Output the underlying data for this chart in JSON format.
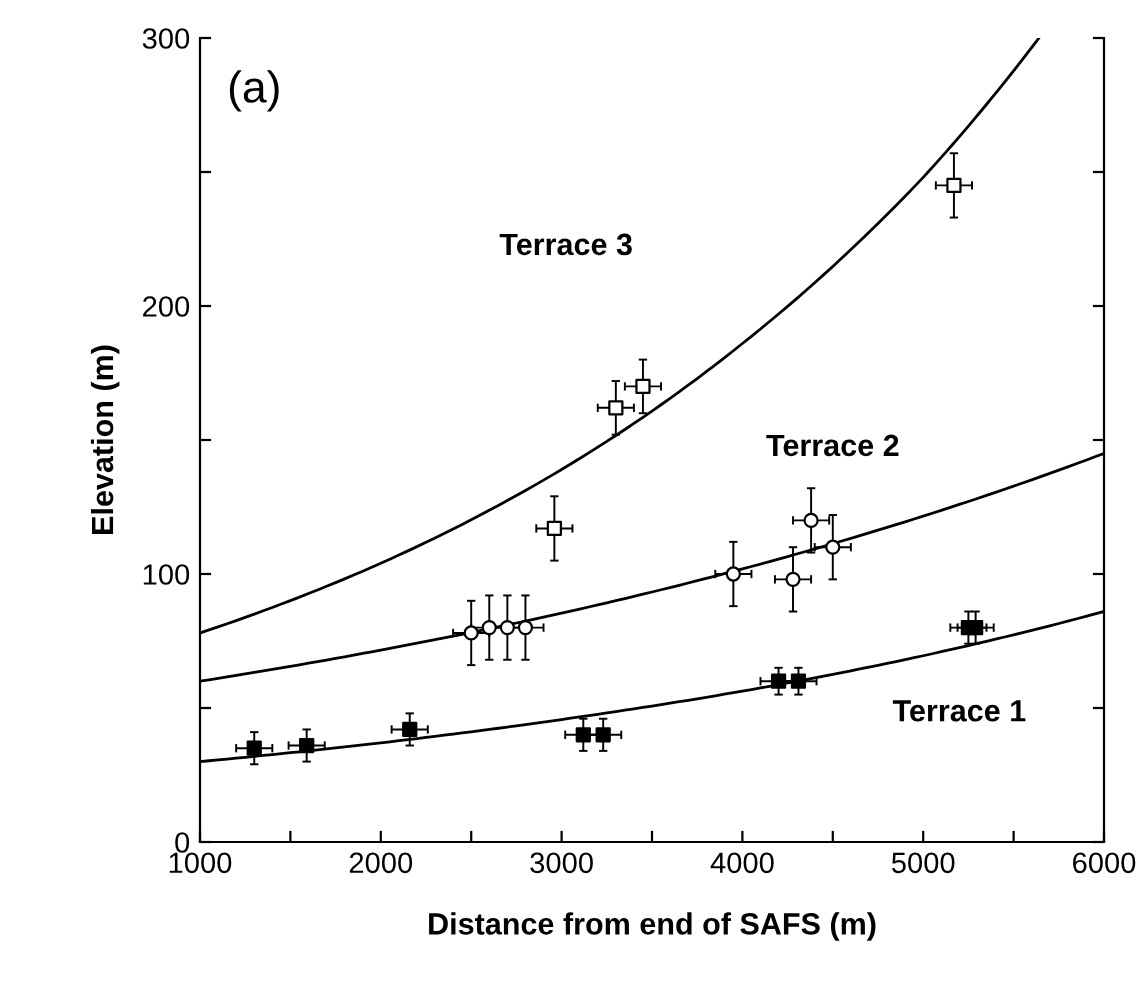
{
  "chart_data": {
    "type": "scatter",
    "xlabel": "Distance from end of SAFS (m)",
    "ylabel": "Elevation (m)",
    "xlim": [
      1000,
      6000
    ],
    "ylim": [
      0,
      300
    ],
    "xticks": [
      1000,
      {
        "value": 1500,
        "label": null
      },
      2000,
      {
        "value": 2500,
        "label": null
      },
      3000,
      {
        "value": 3500,
        "label": null
      },
      4000,
      {
        "value": 4500,
        "label": null
      },
      5000,
      {
        "value": 5500,
        "label": null
      },
      6000
    ],
    "yticks": [
      0,
      {
        "value": 50,
        "label": null
      },
      100,
      {
        "value": 150,
        "label": null
      },
      200,
      {
        "value": 250,
        "label": null
      },
      300
    ],
    "grid": false,
    "legend": false,
    "annotations": [
      "(a)",
      "Terrace 3",
      "Terrace 2",
      "Terrace 1"
    ],
    "series": [
      {
        "marker": "square",
        "color": "#000000",
        "x": [
          1300,
          1590,
          2160,
          3120,
          3230,
          4200,
          4310,
          5250,
          5290
        ],
        "values": [
          35,
          36,
          42,
          40,
          40,
          60,
          60,
          80,
          80
        ],
        "errors": [
          6,
          6,
          6,
          6,
          6,
          5,
          5,
          6,
          6
        ],
        "xerrors": [
          100,
          100,
          100,
          100,
          100,
          100,
          100,
          100,
          100
        ]
      },
      {
        "marker": "circle",
        "color": "#ffffff",
        "x": [
          2500,
          2600,
          2700,
          2800,
          3950,
          4280,
          4380,
          4500
        ],
        "values": [
          78,
          80,
          80,
          80,
          100,
          98,
          120,
          110
        ],
        "errors": [
          12,
          12,
          12,
          12,
          12,
          12,
          12,
          12
        ],
        "xerrors": [
          100,
          100,
          100,
          100,
          100,
          100,
          100,
          100
        ]
      },
      {
        "marker": "square",
        "color": "#ffffff",
        "x": [
          2960,
          3300,
          3450,
          5170
        ],
        "values": [
          117,
          162,
          170,
          245
        ],
        "errors": [
          12,
          10,
          10,
          12
        ],
        "xerrors": [
          100,
          100,
          100,
          100
        ]
      },
      {
        "type": "line",
        "color": "#000000",
        "x": [
          1000,
          2000,
          3000,
          4000,
          5000,
          6000
        ],
        "values": [
          30,
          37,
          45.7,
          56.3,
          69.5,
          86
        ]
      },
      {
        "type": "line",
        "color": "#000000",
        "x": [
          1000,
          2000,
          3000,
          4000,
          5000,
          6000
        ],
        "values": [
          60,
          71.6,
          85.4,
          101.9,
          121.6,
          145
        ]
      },
      {
        "type": "line",
        "color": "#000000",
        "x": [
          1000,
          2000,
          3000,
          4000,
          5000,
          5640
        ],
        "values": [
          78,
          104,
          139,
          186,
          248,
          300
        ]
      }
    ]
  }
}
